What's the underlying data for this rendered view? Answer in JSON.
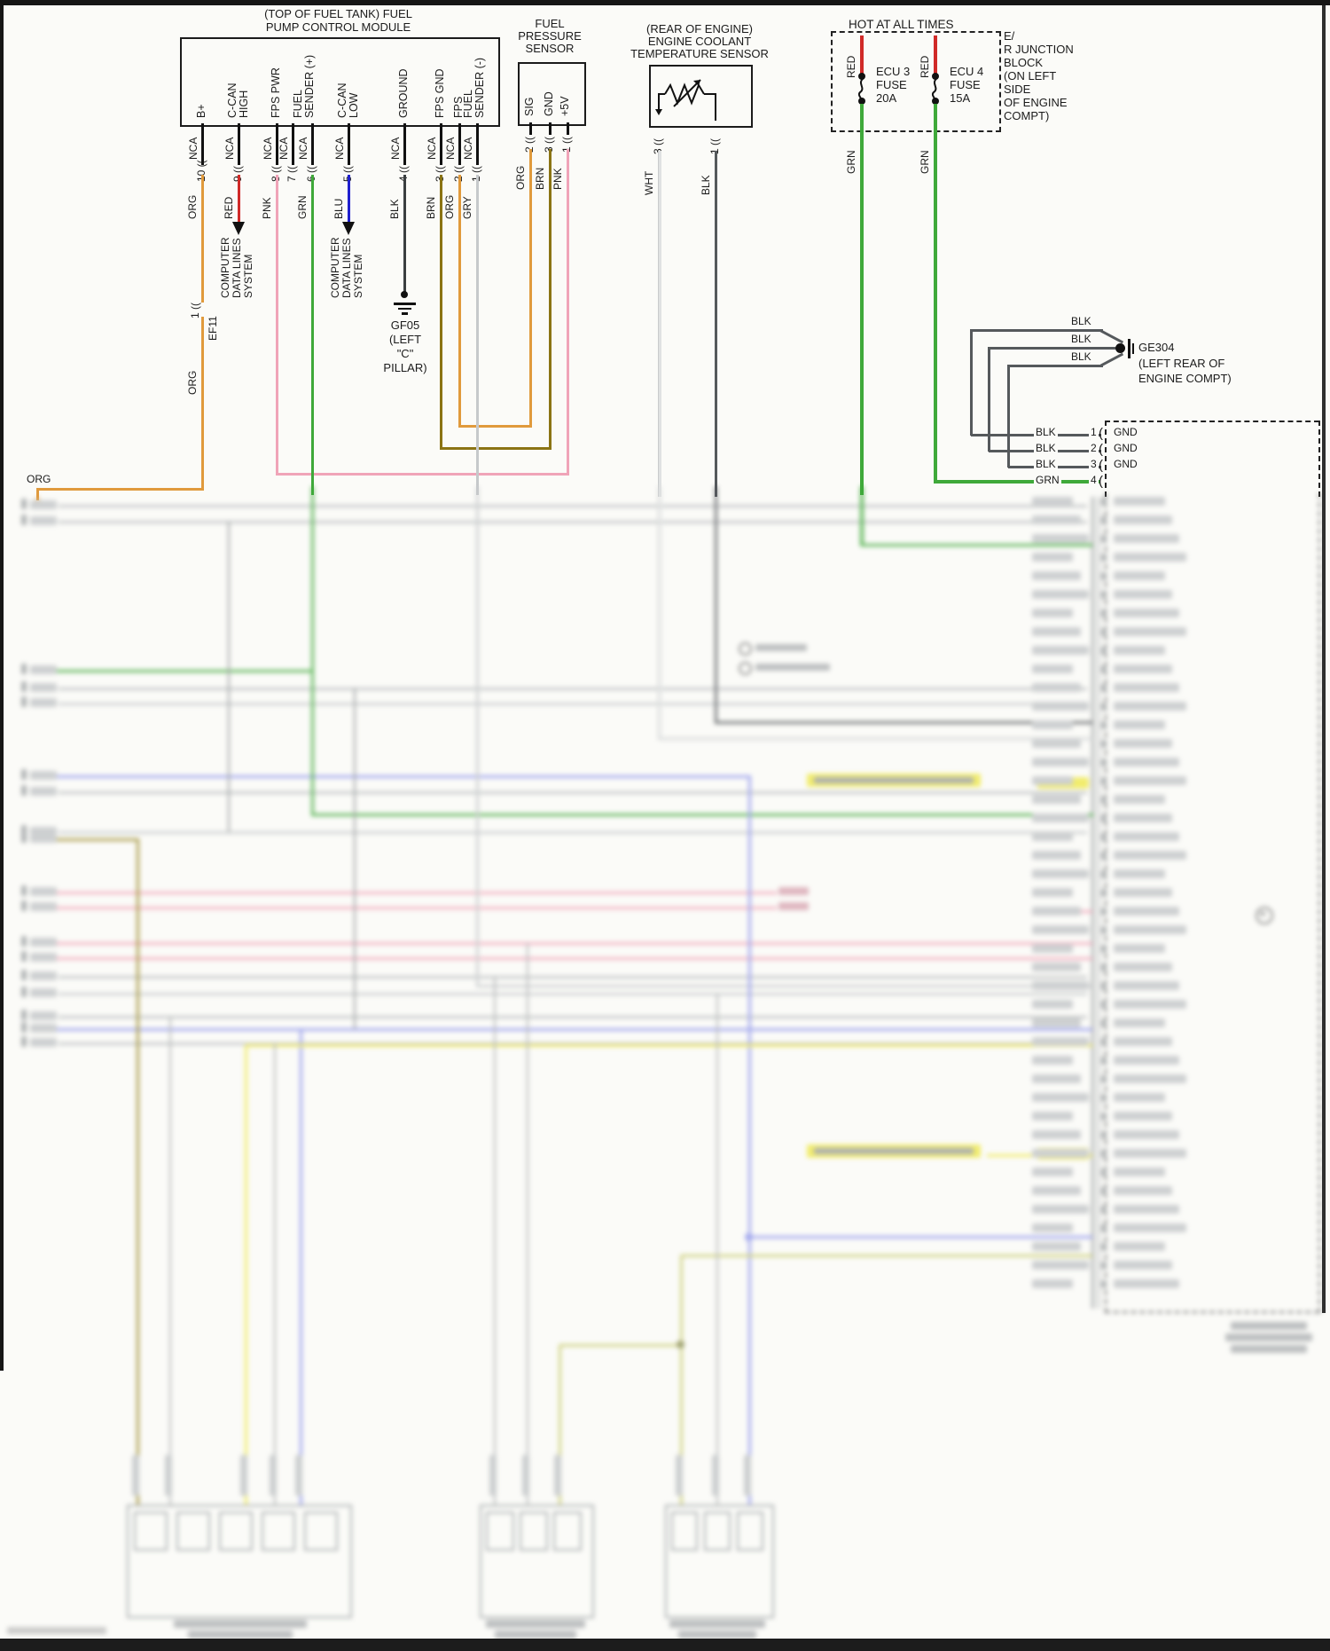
{
  "module": {
    "title1": "(TOP OF FUEL TANK) FUEL",
    "title2": "PUMP CONTROL MODULE",
    "pins": [
      {
        "l1": "B+",
        "nca": "NCA",
        "num_mark": "10 ((",
        "color": "ORG"
      },
      {
        "l1": "C-CAN",
        "l2": "HIGH",
        "nca": "NCA",
        "num_mark": "9 ((",
        "color": "RED"
      },
      {
        "l1": "FPS PWR",
        "nca": "NCA",
        "num_mark": "8 ((",
        "color": "PNK"
      },
      {
        "nca": "NCA",
        "num_mark": "7 (("
      },
      {
        "l1": "FUEL",
        "l2": "SENDER (+)",
        "nca": "NCA",
        "num_mark": "6 ((",
        "color": "GRN"
      },
      {
        "l1": "C-CAN",
        "l2": "LOW",
        "nca": "NCA",
        "num_mark": "5 ((",
        "color": "BLU"
      },
      {
        "l1": "GROUND",
        "nca": "NCA",
        "num_mark": "4 ((",
        "color": "BLK"
      },
      {
        "l1": "FPS GND",
        "nca": "NCA",
        "num_mark": "3 ((",
        "color": "BRN"
      },
      {
        "l1": "FPS",
        "nca": "NCA",
        "num_mark": "2 ((",
        "color": "ORG"
      },
      {
        "l1": "FUEL",
        "l2": "SENDER (-)",
        "nca": "NCA",
        "num_mark": "1 ((",
        "color": "GRY"
      }
    ]
  },
  "cdl": {
    "l1": "COMPUTER",
    "l2": "DATA LINES",
    "l3": "SYSTEM"
  },
  "ef11": {
    "num_mark": "1 ((",
    "name": "EF11",
    "wire": "ORG",
    "corner": "ORG"
  },
  "gf05": {
    "name": "GF05",
    "l1": "(LEFT",
    "l2": "\"C\"",
    "l3": "PILLAR)"
  },
  "fps": {
    "t1": "FUEL",
    "t2": "PRESSURE",
    "t3": "SENSOR",
    "pins": [
      {
        "label": "SIG",
        "num_mark": "2 ((",
        "color": "ORG"
      },
      {
        "label": "GND",
        "num_mark": "3 ((",
        "color": "BRN"
      },
      {
        "label": "+5V",
        "num_mark": "1 ((",
        "color": "PNK"
      }
    ]
  },
  "ect": {
    "t1": "(REAR OF ENGINE)",
    "t2": "ENGINE COOLANT",
    "t3": "TEMPERATURE SENSOR",
    "pins": [
      {
        "num_mark": "3 ((",
        "color": "WHT"
      },
      {
        "num_mark": "1 ((",
        "color": "BLK"
      }
    ]
  },
  "junction": {
    "title": "HOT AT ALL TIMES",
    "side": [
      "E/",
      "R JUNCTION",
      "BLOCK",
      "(ON LEFT",
      "SIDE",
      "OF ENGINE",
      "COMPT)"
    ],
    "fuses": [
      {
        "in": "RED",
        "l1": "ECU 3",
        "l2": "FUSE",
        "l3": "20A",
        "out": "GRN"
      },
      {
        "in": "RED",
        "l1": "ECU 4",
        "l2": "FUSE",
        "l3": "15A",
        "out": "GRN"
      }
    ]
  },
  "ge304": {
    "name": "GE304",
    "loc1": "(LEFT REAR OF",
    "loc2": "ENGINE COMPT)",
    "wires": [
      "BLK",
      "BLK",
      "BLK"
    ]
  },
  "ecm": {
    "rows": [
      {
        "color": "BLK",
        "num": "1",
        "mark": "(",
        "label": "GND"
      },
      {
        "color": "BLK",
        "num": "2",
        "mark": "(",
        "label": "GND"
      },
      {
        "color": "BLK",
        "num": "3",
        "mark": "(",
        "label": "GND"
      },
      {
        "color": "GRN",
        "num": "4",
        "mark": "(",
        "label": ""
      }
    ]
  },
  "colors": {
    "org": "#E09A3C",
    "red": "#D02A28",
    "pnk": "#F0A4B8",
    "grn": "#3FA93A",
    "blu": "#2020CE",
    "blk_wire": "#55595C",
    "brn": "#8B7414",
    "gry": "#C6C9CB",
    "wht": "#E0E2E2",
    "periwinkle": "#8F96EC",
    "yellow": "#EFE94F",
    "yellow_green": "#C9CC70",
    "olive": "#9A8A2A",
    "line": "#1B1B1B"
  }
}
